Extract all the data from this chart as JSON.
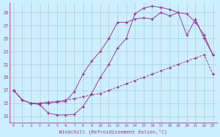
{
  "xlabel": "Windchill (Refroidissement éolien,°C)",
  "bg_color": "#cceeff",
  "grid_color": "#aacccc",
  "line_color": "#993399",
  "xlim": [
    -0.5,
    23.5
  ],
  "ylim": [
    12.0,
    30.5
  ],
  "yticks": [
    13,
    15,
    17,
    19,
    21,
    23,
    25,
    27,
    29
  ],
  "xticks": [
    0,
    1,
    2,
    3,
    4,
    5,
    6,
    7,
    8,
    9,
    10,
    11,
    12,
    13,
    14,
    15,
    16,
    17,
    18,
    19,
    20,
    21,
    22,
    23
  ],
  "line1_x": [
    0,
    1,
    2,
    3,
    4,
    5,
    6,
    7,
    8,
    9,
    10,
    11,
    12,
    13,
    14,
    15,
    16,
    17,
    18,
    19,
    20,
    21,
    22,
    23
  ],
  "line1_y": [
    17.0,
    15.5,
    15.0,
    14.8,
    13.5,
    13.2,
    13.2,
    13.3,
    14.5,
    16.5,
    19.0,
    21.0,
    23.5,
    25.0,
    28.8,
    29.7,
    30.0,
    29.8,
    29.5,
    29.0,
    25.5,
    28.0,
    25.0,
    22.5
  ],
  "line2_x": [
    0,
    1,
    2,
    3,
    4,
    5,
    6,
    7,
    8,
    9,
    10,
    11,
    12,
    13,
    14,
    15,
    16,
    17,
    18,
    19,
    20,
    21,
    22,
    23
  ],
  "line2_y": [
    17.0,
    15.5,
    15.0,
    15.0,
    15.0,
    15.2,
    15.3,
    16.8,
    19.5,
    21.5,
    23.0,
    25.0,
    27.5,
    27.5,
    28.0,
    28.2,
    28.0,
    29.0,
    28.5,
    29.0,
    28.8,
    27.5,
    25.5,
    22.5
  ],
  "line3_x": [
    0,
    1,
    2,
    3,
    4,
    5,
    6,
    7,
    8,
    9,
    10,
    11,
    12,
    13,
    14,
    15,
    16,
    17,
    18,
    19,
    20,
    21,
    22,
    23
  ],
  "line3_y": [
    17.0,
    15.5,
    15.0,
    15.0,
    15.2,
    15.3,
    15.5,
    15.7,
    16.0,
    16.3,
    16.5,
    17.0,
    17.5,
    18.0,
    18.5,
    19.0,
    19.5,
    20.0,
    20.5,
    21.0,
    21.5,
    22.0,
    22.5,
    19.5
  ]
}
